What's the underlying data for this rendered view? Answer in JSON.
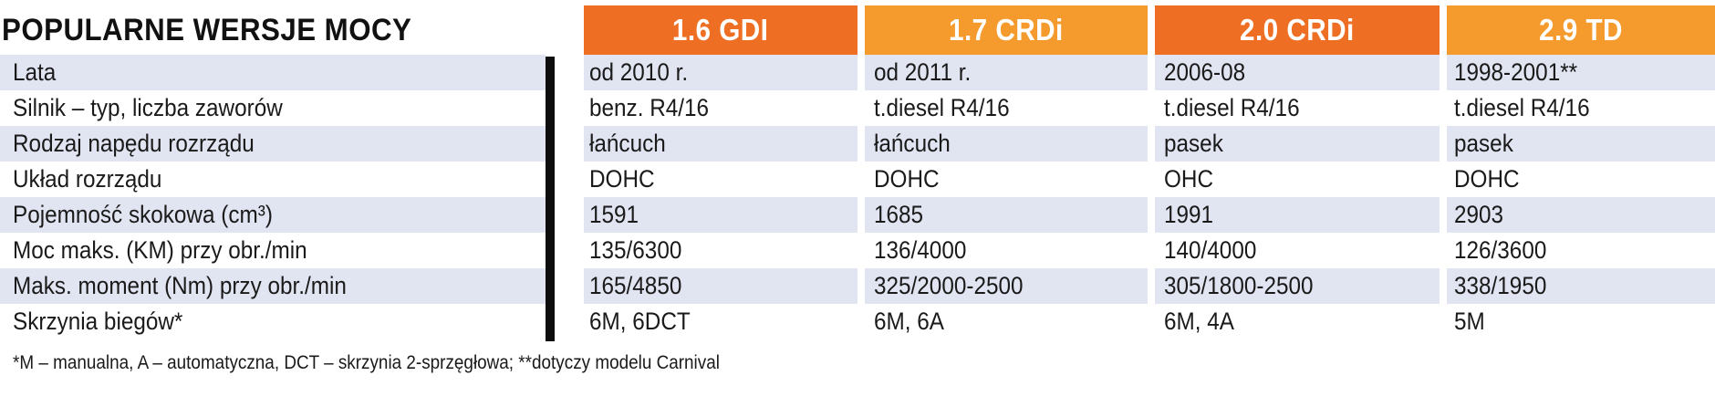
{
  "title": "POPULARNE WERSJE MOCY",
  "columns": [
    "1.6 GDI",
    "1.7 CRDi",
    "2.0 CRDi",
    "2.9 TD"
  ],
  "header_colors": [
    "#ee6f24",
    "#f59a2d",
    "#ee6f24",
    "#f59a2d"
  ],
  "row_shade_color": "#e1e4f1",
  "rows": [
    {
      "label": "Lata",
      "values": [
        "od 2010 r.",
        "od 2011 r.",
        "2006-08",
        "1998-2001**"
      ]
    },
    {
      "label": "Silnik – typ, liczba zaworów",
      "values": [
        "benz. R4/16",
        "t.diesel R4/16",
        "t.diesel R4/16",
        "t.diesel R4/16"
      ]
    },
    {
      "label": "Rodzaj napędu rozrządu",
      "values": [
        "łańcuch",
        "łańcuch",
        "pasek",
        "pasek"
      ]
    },
    {
      "label": "Układ rozrządu",
      "values": [
        "DOHC",
        "DOHC",
        "OHC",
        "DOHC"
      ]
    },
    {
      "label": "Pojemność skokowa (cm³)",
      "values": [
        "1591",
        "1685",
        "1991",
        "2903"
      ]
    },
    {
      "label": "Moc maks. (KM) przy obr./min",
      "values": [
        "135/6300",
        "136/4000",
        "140/4000",
        "126/3600"
      ]
    },
    {
      "label": "Maks. moment (Nm) przy obr./min",
      "values": [
        "165/4850",
        "325/2000-2500",
        "305/1800-2500",
        "338/1950"
      ]
    },
    {
      "label": "Skrzynia biegów*",
      "values": [
        "6M, 6DCT",
        "6M, 6A",
        "6M, 4A",
        "5M"
      ]
    }
  ],
  "footnote": "*M – manualna, A – automatyczna, DCT – skrzynia 2-sprzęgłowa; **dotyczy modelu Carnival"
}
